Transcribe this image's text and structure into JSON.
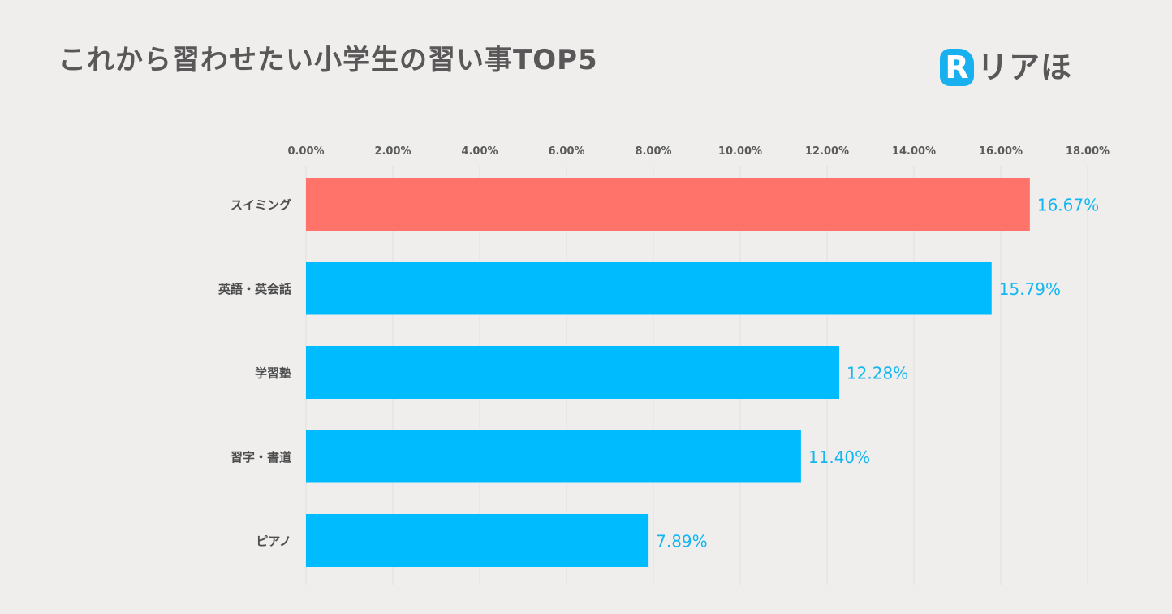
{
  "header": {
    "title": "これから習わせたい小学生の習い事TOP5",
    "logo_mark": "R",
    "logo_text": "リアほ"
  },
  "colors": {
    "highlight": "#ff736a",
    "bar": "#00bcff",
    "value_text": "#12b6f0",
    "grid": "#e0e0e0"
  },
  "chart_data": {
    "type": "bar",
    "orientation": "horizontal",
    "title": "これから習わせたい小学生の習い事TOP5",
    "categories": [
      "スイミング",
      "英語・英会話",
      "学習塾",
      "習字・書道",
      "ピアノ"
    ],
    "values": [
      16.67,
      15.79,
      12.28,
      11.4,
      7.89
    ],
    "value_labels": [
      "16.67%",
      "15.79%",
      "12.28%",
      "11.40%",
      "7.89%"
    ],
    "xlim": [
      0,
      18
    ],
    "x_ticks": [
      0,
      2,
      4,
      6,
      8,
      10,
      12,
      14,
      16,
      18
    ],
    "x_tick_labels": [
      "0.00%",
      "2.00%",
      "4.00%",
      "6.00%",
      "8.00%",
      "10.00%",
      "12.00%",
      "14.00%",
      "16.00%",
      "18.00%"
    ],
    "x_axis_position": "top",
    "grid": true,
    "highlight_index": 0
  }
}
